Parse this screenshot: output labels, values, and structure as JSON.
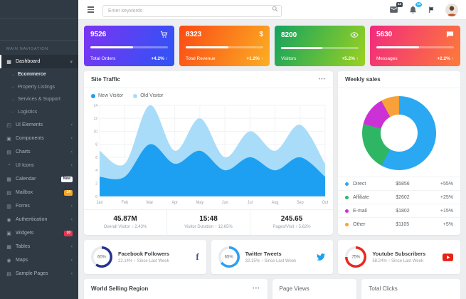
{
  "sidebar": {
    "section_label": "MAIN NAVIGATION",
    "items": [
      {
        "id": "dashboard",
        "label": "Dashboard",
        "icon": "dashboard-icon",
        "active": true,
        "chevron": "down"
      },
      {
        "id": "ecommerce",
        "label": "Ecommerce",
        "sub": true,
        "bright": true
      },
      {
        "id": "property-listings",
        "label": "Property Listings",
        "sub": true
      },
      {
        "id": "services-support",
        "label": "Services & Support",
        "sub": true
      },
      {
        "id": "logistics",
        "label": "Logistics",
        "sub": true
      },
      {
        "id": "ui-elements",
        "label": "UI Elements",
        "icon": "ui-elements-icon",
        "chevron": "left"
      },
      {
        "id": "components",
        "label": "Components",
        "icon": "components-icon",
        "chevron": "left"
      },
      {
        "id": "charts",
        "label": "Charts",
        "icon": "charts-icon",
        "chevron": "left"
      },
      {
        "id": "ui-icons",
        "label": "UI Icons",
        "icon": "ui-icons-icon",
        "chevron": "left"
      },
      {
        "id": "calendar",
        "label": "Calendar",
        "icon": "calendar-icon",
        "badge": {
          "text": "New",
          "bg": "#ffffff",
          "fg": "#333333"
        }
      },
      {
        "id": "mailbox",
        "label": "Mailbox",
        "icon": "mailbox-icon",
        "badge": {
          "text": "14",
          "bg": "#f6a623",
          "fg": "#ffffff"
        }
      },
      {
        "id": "forms",
        "label": "Forms",
        "icon": "forms-icon",
        "chevron": "left"
      },
      {
        "id": "authentication",
        "label": "Authentication",
        "icon": "authentication-icon",
        "chevron": "left"
      },
      {
        "id": "widgets",
        "label": "Widgets",
        "icon": "widgets-icon",
        "badge": {
          "text": "10",
          "bg": "#e8344f",
          "fg": "#ffffff"
        }
      },
      {
        "id": "tables",
        "label": "Tables",
        "icon": "tables-icon",
        "chevron": "left"
      },
      {
        "id": "maps",
        "label": "Maps",
        "icon": "maps-icon",
        "chevron": "left"
      },
      {
        "id": "sample-pages",
        "label": "Sample Pages",
        "icon": "sample-pages-icon",
        "chevron": "left"
      }
    ]
  },
  "header": {
    "search_placeholder": "Enter keywords",
    "mail_badge": "12",
    "bell_badge": "14",
    "mail_badge_color": "#3f4a54",
    "bell_badge_color": "#29b6f6"
  },
  "stat_cards": [
    {
      "value": "9526",
      "label": "Total Orders",
      "delta": "+4.2% ↑",
      "icon": "cart-icon",
      "gradient": [
        "#7d33f2",
        "#2d55f5"
      ],
      "progress": 55
    },
    {
      "value": "8323",
      "label": "Total Revenue",
      "delta": "+1.2% ↑",
      "icon": "dollar-icon",
      "gradient": [
        "#fb4a14",
        "#fbae23"
      ],
      "progress": 55
    },
    {
      "value": "8200",
      "label": "Visitors",
      "delta": "+5.2% ↑",
      "icon": "eye-icon",
      "gradient": [
        "#14a35f",
        "#9ad122"
      ],
      "progress": 53
    },
    {
      "value": "5630",
      "label": "Messages",
      "delta": "+2.2% ↑",
      "icon": "message-icon",
      "gradient": [
        "#f12a7e",
        "#fd7b38"
      ],
      "progress": 55
    }
  ],
  "site_traffic": {
    "title": "Site Traffic",
    "menu_dots": "•••",
    "footer_stats": [
      {
        "value": "45.87M",
        "label": "Overall Visitor",
        "delta": "2.43%"
      },
      {
        "value": "15:48",
        "label": "Visitor Duration",
        "delta": "12.65%"
      },
      {
        "value": "245.65",
        "label": "Pages/Visit",
        "delta": "5.62%"
      }
    ]
  },
  "weekly_sales": {
    "title": "Weekly sales"
  },
  "chart_data": [
    {
      "type": "area",
      "title": "Site Traffic",
      "x": [
        "Jan",
        "Feb",
        "Mar",
        "Apr",
        "May",
        "Jun",
        "Jul",
        "Aug",
        "Sep",
        "Oct"
      ],
      "series": [
        {
          "name": "Old Visitor",
          "color": "#a9dcf8",
          "values": [
            7,
            5,
            14,
            7,
            12,
            6,
            10,
            7,
            11,
            5
          ]
        },
        {
          "name": "New Visitor",
          "color": "#1da0f2",
          "values": [
            3,
            3,
            8,
            5,
            7,
            4,
            6,
            4,
            6,
            3
          ]
        }
      ],
      "ylim": [
        0,
        14
      ],
      "yticks": [
        0,
        2,
        4,
        6,
        8,
        10,
        12,
        14
      ],
      "grid": true,
      "legend_position": "top-left"
    },
    {
      "type": "pie",
      "donut": true,
      "title": "Weekly sales",
      "labels": [
        "Direct",
        "Affiliate",
        "E-mail",
        "Other"
      ],
      "values": [
        58,
        21,
        13,
        8
      ],
      "amounts": [
        "$5856",
        "$2602",
        "$1802",
        "$1105"
      ],
      "changes": [
        "+55%",
        "+25%",
        "+15%",
        "+5%"
      ],
      "colors": [
        "#2aa8f2",
        "#2eb664",
        "#cc31d6",
        "#f8a03a"
      ]
    }
  ],
  "social_cards": [
    {
      "percent": 60,
      "ring_color": "#26348b",
      "title": "Facebook Followers",
      "subtitle": "22.14% ↑ Since Last Week",
      "icon": "facebook-icon"
    },
    {
      "percent": 65,
      "ring_color": "#2f9ff3",
      "title": "Twitter Tweets",
      "subtitle": "32.15% ↑ Since Last Week",
      "icon": "twitter-icon"
    },
    {
      "percent": 75,
      "ring_color": "#e52a20",
      "title": "Youtube Subscribers",
      "subtitle": "58.24% ↑ Since Last Week",
      "icon": "youtube-icon"
    }
  ],
  "bottom_cards": [
    {
      "title": "World Selling Region",
      "menu_dots": "•••"
    },
    {
      "title": "Page Views"
    },
    {
      "title": "Total Clicks"
    }
  ]
}
